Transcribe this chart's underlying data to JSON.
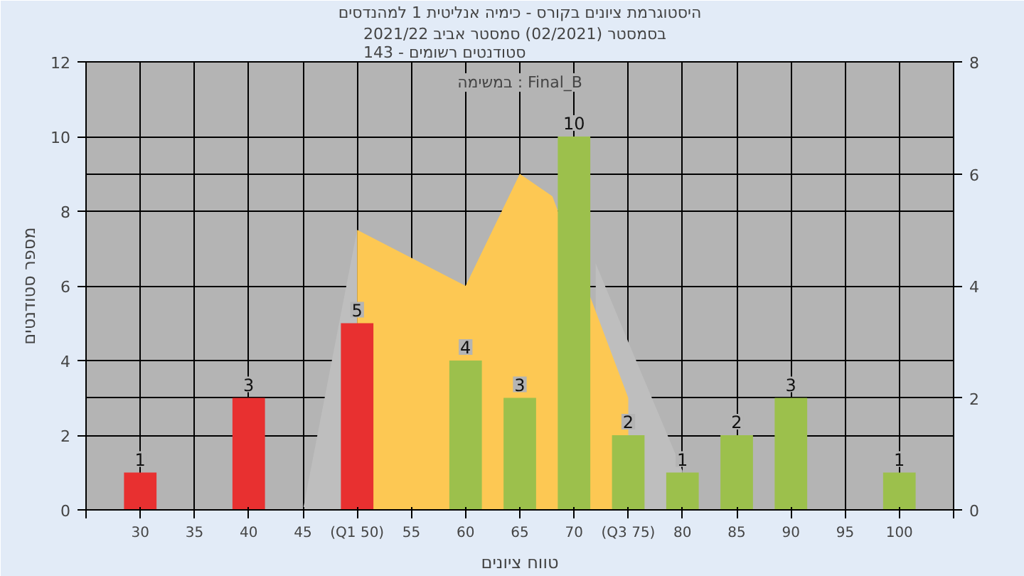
{
  "chart_data": {
    "type": "bar",
    "title": "היסטוגרמת ציונים בקורס - כימיה אנליטית 1 למהנדסים",
    "subtitle": "בסמסטר  (02/2021)  סמסטר אביב 2021/22\nסטודנטים רשומים - 143",
    "xlabel": "טווח ציונים",
    "ylabel": "מספר סטודנטים",
    "annotations": [
      "במשימה : Final_B"
    ],
    "xlim": [
      25,
      105
    ],
    "xticks": [
      {
        "value": 25,
        "label": null
      },
      30,
      35,
      40,
      45,
      {
        "value": 50,
        "label": "(Q1 50)"
      },
      55,
      60,
      65,
      70,
      {
        "value": 75,
        "label": "(Q3 75)"
      },
      80,
      85,
      90,
      95,
      100,
      {
        "value": 105,
        "label": null
      }
    ],
    "ylim": [
      0,
      12
    ],
    "yticks": [
      0,
      2,
      4,
      6,
      8,
      10,
      12
    ],
    "y2lim": [
      0,
      8
    ],
    "y2ticks": [
      0,
      2,
      4,
      6,
      8
    ],
    "grid": true,
    "series": [
      {
        "type": "area",
        "axis": "y2",
        "color": "#bebebe",
        "x": [
          45,
          50
        ],
        "values": [
          0,
          5
        ]
      },
      {
        "type": "area",
        "axis": "y2",
        "color": "#bebebe",
        "x": [
          72,
          75,
          80
        ],
        "values": [
          4.4,
          3,
          0.7
        ]
      },
      {
        "type": "area",
        "axis": "y2",
        "color": "#fdc853",
        "x": [
          50,
          60,
          65,
          68,
          75
        ],
        "values": [
          5,
          4,
          6,
          5.6,
          2
        ]
      },
      {
        "value_labels": [
          "1",
          "3",
          "5",
          "4",
          "3",
          "10",
          "2",
          "1",
          "2",
          "3",
          "1"
        ],
        "x": [
          30,
          40,
          50,
          60,
          65,
          70,
          75,
          80,
          85,
          90,
          100
        ],
        "values": [
          1,
          3,
          5,
          4,
          3,
          10,
          2,
          1,
          2,
          3,
          1
        ],
        "colors": [
          "#e83030",
          "#e83030",
          "#e83030",
          "#9cc04c",
          "#9cc04c",
          "#9cc04c",
          "#9cc04c",
          "#9cc04c",
          "#9cc04c",
          "#9cc04c",
          "#9cc04c"
        ]
      }
    ]
  }
}
